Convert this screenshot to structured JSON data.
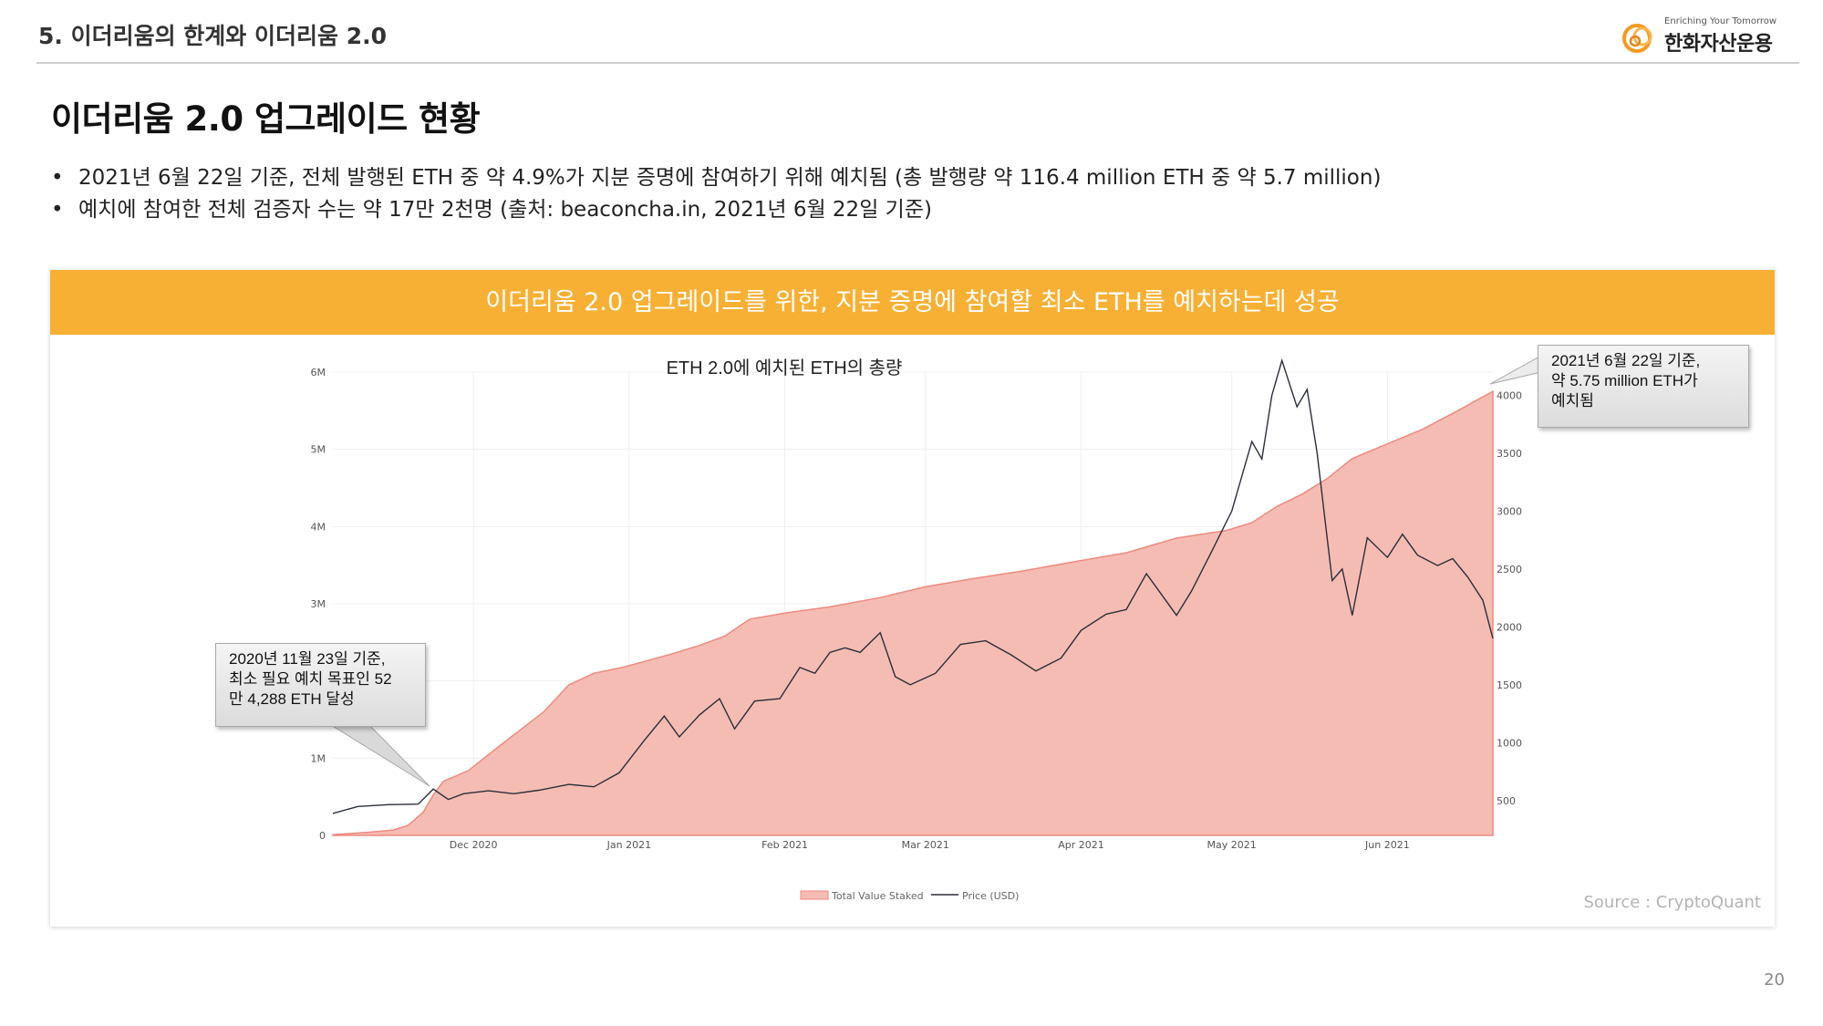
{
  "header": {
    "section_title": "5. 이더리움의 한계와 이더리움 2.0",
    "logo_tagline": "Enriching Your Tomorrow",
    "logo_name": "한화자산운용"
  },
  "page_heading": "이더리움 2.0 업그레이드 현황",
  "bullets": [
    {
      "marker": "•",
      "text": "2021년 6월 22일 기준, 전체 발행된 ETH 중 약 4.9%가 지분 증명에 참여하기 위해 예치됨 (총 발행량 약 116.4 million ETH 중 약 5.7 million)"
    },
    {
      "marker": "•",
      "text": "예치에 참여한 전체 검증자 수는 약 17만 2천명 (출처: beaconcha.in, 2021년 6월 22일 기준)"
    }
  ],
  "banner": "이더리움 2.0 업그레이드를 위한, 지분 증명에 참여할 최소 ETH를 예치하는데 성공",
  "source": "Source : CryptoQuant",
  "page_number": "20",
  "callouts": {
    "left": [
      "2020년 11월 23일 기준,",
      "최소 필요 예치 목표인 52",
      "만 4,288 ETH 달성"
    ],
    "right": [
      "2021년 6월 22일 기준,",
      "약 5.75 million ETH가",
      "예치됨"
    ]
  },
  "colors": {
    "banner": "#f7b034",
    "area_fill": "#f5bcb3",
    "area_stroke": "#ee8a80",
    "price_line": "#2b2f3a"
  },
  "chart_data": {
    "type": "area",
    "title": "ETH 2.0에 예치된 ETH의 총량",
    "x_ticks": [
      "Dec 2020",
      "Jan 2021",
      "Feb 2021",
      "Mar 2021",
      "Apr 2021",
      "May 2021",
      "Jun 2021"
    ],
    "x_range": [
      "2020-11-03",
      "2021-06-22"
    ],
    "y_left_ticks": [
      "0",
      "1M",
      "2M",
      "3M",
      "4M",
      "5M",
      "6M"
    ],
    "y_left_range": [
      0,
      6000000
    ],
    "y_right_ticks": [
      "500",
      "1000",
      "1500",
      "2000",
      "2500",
      "3000",
      "3500",
      "4000"
    ],
    "y_right_range": [
      200,
      4200
    ],
    "grid": true,
    "legend_position": "bottom",
    "series": [
      {
        "name": "Total Value Staked",
        "axis": "left",
        "points": [
          [
            "2020-11-03",
            10000
          ],
          [
            "2020-11-10",
            40000
          ],
          [
            "2020-11-15",
            70000
          ],
          [
            "2020-11-18",
            130000
          ],
          [
            "2020-11-21",
            300000
          ],
          [
            "2020-11-23",
            524288
          ],
          [
            "2020-11-25",
            700000
          ],
          [
            "2020-11-30",
            840000
          ],
          [
            "2020-12-05",
            1100000
          ],
          [
            "2020-12-10",
            1350000
          ],
          [
            "2020-12-15",
            1600000
          ],
          [
            "2020-12-20",
            1950000
          ],
          [
            "2020-12-25",
            2100000
          ],
          [
            "2020-12-31",
            2180000
          ],
          [
            "2021-01-05",
            2270000
          ],
          [
            "2021-01-10",
            2360000
          ],
          [
            "2021-01-15",
            2460000
          ],
          [
            "2021-01-20",
            2580000
          ],
          [
            "2021-01-25",
            2800000
          ],
          [
            "2021-02-01",
            2880000
          ],
          [
            "2021-02-10",
            2960000
          ],
          [
            "2021-02-20",
            3080000
          ],
          [
            "2021-03-01",
            3220000
          ],
          [
            "2021-03-10",
            3320000
          ],
          [
            "2021-03-20",
            3420000
          ],
          [
            "2021-04-01",
            3560000
          ],
          [
            "2021-04-10",
            3660000
          ],
          [
            "2021-04-20",
            3850000
          ],
          [
            "2021-04-30",
            3950000
          ],
          [
            "2021-05-05",
            4050000
          ],
          [
            "2021-05-10",
            4260000
          ],
          [
            "2021-05-15",
            4420000
          ],
          [
            "2021-05-20",
            4620000
          ],
          [
            "2021-05-25",
            4880000
          ],
          [
            "2021-06-01",
            5070000
          ],
          [
            "2021-06-08",
            5260000
          ],
          [
            "2021-06-15",
            5500000
          ],
          [
            "2021-06-22",
            5750000
          ]
        ]
      },
      {
        "name": "Price (USD)",
        "axis": "right",
        "points": [
          [
            "2020-11-03",
            390
          ],
          [
            "2020-11-08",
            450
          ],
          [
            "2020-11-14",
            465
          ],
          [
            "2020-11-20",
            470
          ],
          [
            "2020-11-23",
            600
          ],
          [
            "2020-11-26",
            510
          ],
          [
            "2020-11-29",
            560
          ],
          [
            "2020-12-04",
            585
          ],
          [
            "2020-12-09",
            560
          ],
          [
            "2020-12-14",
            590
          ],
          [
            "2020-12-20",
            640
          ],
          [
            "2020-12-25",
            620
          ],
          [
            "2020-12-30",
            740
          ],
          [
            "2021-01-04",
            1020
          ],
          [
            "2021-01-08",
            1230
          ],
          [
            "2021-01-11",
            1050
          ],
          [
            "2021-01-15",
            1240
          ],
          [
            "2021-01-19",
            1380
          ],
          [
            "2021-01-22",
            1120
          ],
          [
            "2021-01-26",
            1360
          ],
          [
            "2021-01-31",
            1380
          ],
          [
            "2021-02-04",
            1650
          ],
          [
            "2021-02-07",
            1600
          ],
          [
            "2021-02-10",
            1780
          ],
          [
            "2021-02-13",
            1820
          ],
          [
            "2021-02-16",
            1780
          ],
          [
            "2021-02-20",
            1950
          ],
          [
            "2021-02-23",
            1570
          ],
          [
            "2021-02-26",
            1500
          ],
          [
            "2021-03-03",
            1600
          ],
          [
            "2021-03-08",
            1850
          ],
          [
            "2021-03-13",
            1880
          ],
          [
            "2021-03-18",
            1760
          ],
          [
            "2021-03-23",
            1620
          ],
          [
            "2021-03-28",
            1730
          ],
          [
            "2021-04-01",
            1970
          ],
          [
            "2021-04-06",
            2110
          ],
          [
            "2021-04-10",
            2150
          ],
          [
            "2021-04-14",
            2460
          ],
          [
            "2021-04-17",
            2280
          ],
          [
            "2021-04-20",
            2100
          ],
          [
            "2021-04-23",
            2310
          ],
          [
            "2021-04-27",
            2650
          ],
          [
            "2021-05-01",
            3000
          ],
          [
            "2021-05-05",
            3600
          ],
          [
            "2021-05-07",
            3450
          ],
          [
            "2021-05-09",
            4000
          ],
          [
            "2021-05-11",
            4300
          ],
          [
            "2021-05-14",
            3900
          ],
          [
            "2021-05-16",
            4050
          ],
          [
            "2021-05-18",
            3500
          ],
          [
            "2021-05-21",
            2400
          ],
          [
            "2021-05-23",
            2500
          ],
          [
            "2021-05-25",
            2100
          ],
          [
            "2021-05-28",
            2770
          ],
          [
            "2021-06-01",
            2600
          ],
          [
            "2021-06-04",
            2800
          ],
          [
            "2021-06-07",
            2620
          ],
          [
            "2021-06-11",
            2530
          ],
          [
            "2021-06-14",
            2590
          ],
          [
            "2021-06-17",
            2430
          ],
          [
            "2021-06-20",
            2230
          ],
          [
            "2021-06-22",
            1900
          ]
        ]
      }
    ]
  }
}
